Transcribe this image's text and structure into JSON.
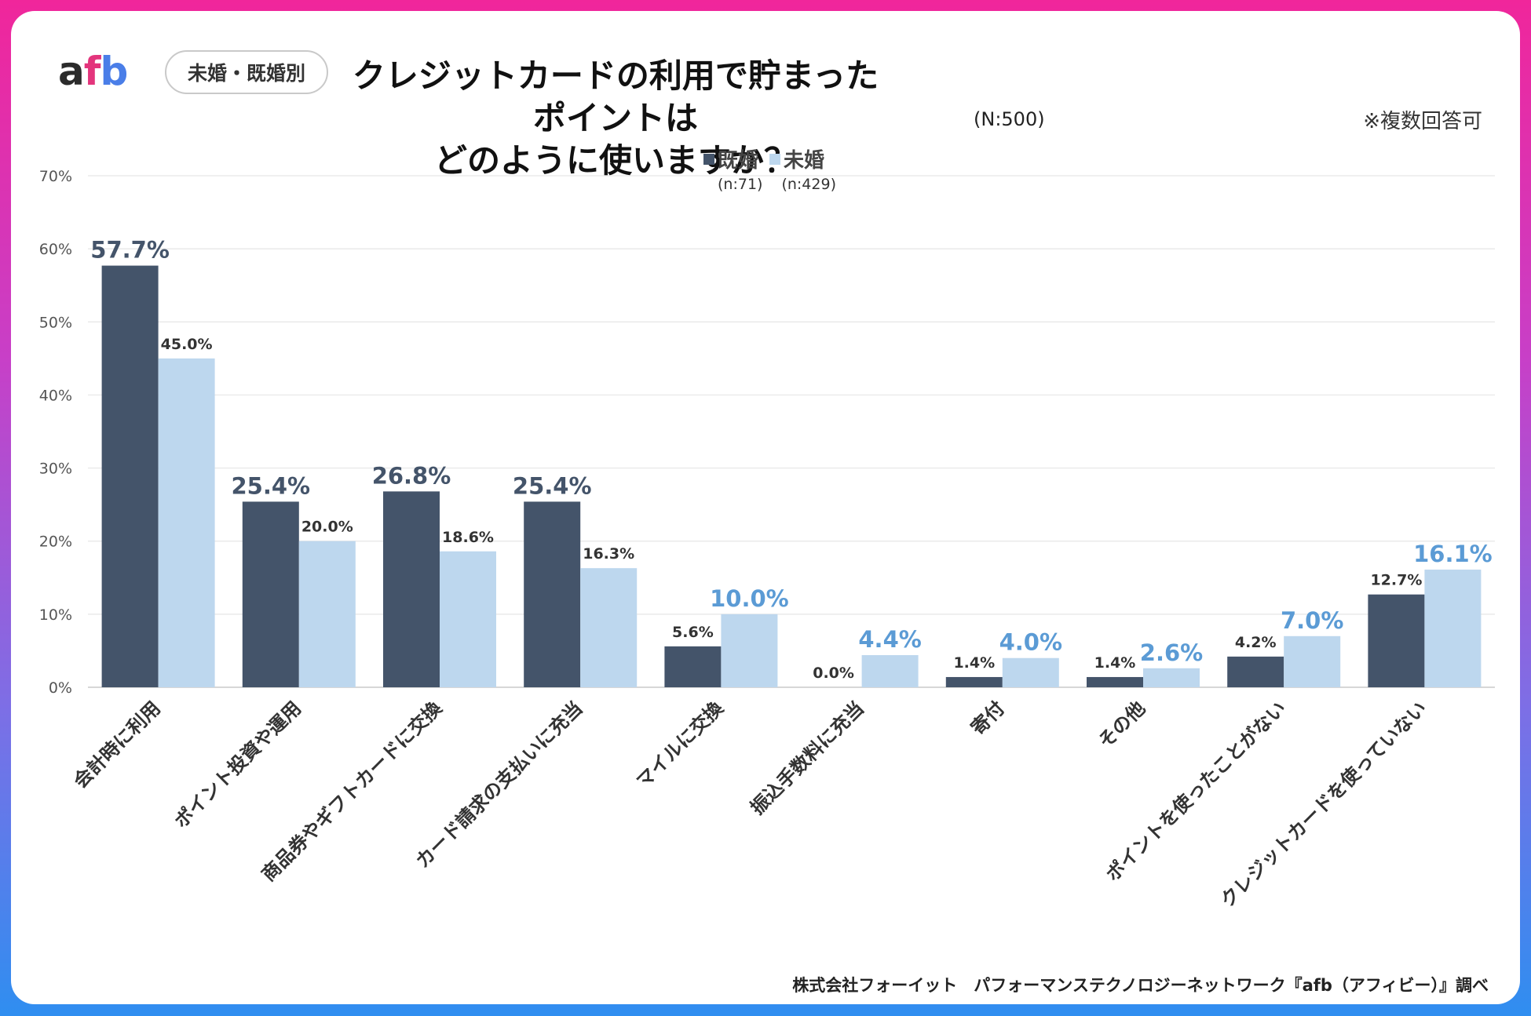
{
  "brand": {
    "logo_a": "a",
    "logo_f": "f",
    "logo_b": "b"
  },
  "segment_badge": "未婚・既婚別",
  "title_line1": "クレジットカードの利用で貯まったポイントは",
  "title_line2": "どのように使いますか？",
  "sample_size": "(N:500)",
  "note": "※複数回答可",
  "footer": "株式会社フォーイット　パフォーマンステクノロジーネットワーク『afb（アフィビー）』調べ",
  "legend": [
    {
      "label": "既婚",
      "n": "(n:71)",
      "color": "#44546a"
    },
    {
      "label": "未婚",
      "n": "(n:429)",
      "color": "#bdd7ee"
    }
  ],
  "chart_data": {
    "type": "bar",
    "categories": [
      "会計時に利用",
      "ポイント投資や運用",
      "商品券やギフトカードに交換",
      "カード請求の支払いに充当",
      "マイルに交換",
      "振込手数料に充当",
      "寄付",
      "その他",
      "ポイントを使ったことがない",
      "クレジットカードを使っていない"
    ],
    "series": [
      {
        "name": "既婚",
        "color": "#44546a",
        "values": [
          57.7,
          25.4,
          26.8,
          25.4,
          5.6,
          0.0,
          1.4,
          1.4,
          4.2,
          12.7
        ],
        "labels": [
          "57.7%",
          "25.4%",
          "26.8%",
          "25.4%",
          "5.6%",
          "0.0%",
          "1.4%",
          "1.4%",
          "4.2%",
          "12.7%"
        ],
        "highlight": [
          true,
          true,
          true,
          true,
          false,
          false,
          false,
          false,
          false,
          false
        ]
      },
      {
        "name": "未婚",
        "color": "#bdd7ee",
        "values": [
          45.0,
          20.0,
          18.6,
          16.3,
          10.0,
          4.4,
          4.0,
          2.6,
          7.0,
          16.1
        ],
        "labels": [
          "45.0%",
          "20.0%",
          "18.6%",
          "16.3%",
          "10.0%",
          "4.4%",
          "4.0%",
          "2.6%",
          "7.0%",
          "16.1%"
        ],
        "highlight": [
          false,
          false,
          false,
          false,
          true,
          true,
          true,
          true,
          true,
          true
        ]
      }
    ],
    "yticks": [
      "0%",
      "10%",
      "20%",
      "30%",
      "40%",
      "50%",
      "60%",
      "70%"
    ],
    "ylim": [
      0,
      70
    ],
    "highlight_colors": {
      "既婚": "#44546a",
      "未婚": "#5b9bd5"
    },
    "grid": true
  }
}
